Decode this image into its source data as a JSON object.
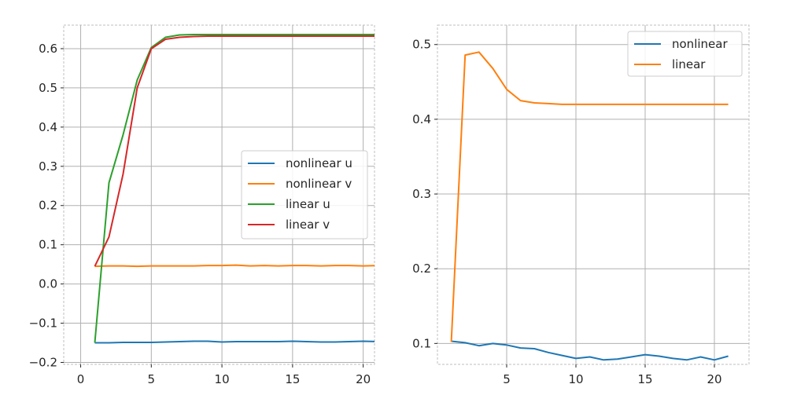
{
  "chart_data": [
    {
      "type": "line",
      "title": "",
      "xlabel": "",
      "ylabel": "",
      "xlim": [
        -1.2,
        20.8
      ],
      "ylim": [
        -0.205,
        0.66
      ],
      "xticks": [
        0,
        5,
        10,
        15,
        20
      ],
      "yticks": [
        -0.2,
        -0.1,
        0.0,
        0.1,
        0.2,
        0.3,
        0.4,
        0.5,
        0.6
      ],
      "ytick_labels": [
        "−0.2",
        "−0.1",
        "0.0",
        "0.1",
        "0.2",
        "0.3",
        "0.4",
        "0.5",
        "0.6"
      ],
      "grid": true,
      "legend": "center-right",
      "x": [
        1,
        2,
        3,
        4,
        5,
        6,
        7,
        8,
        9,
        10,
        11,
        12,
        13,
        14,
        15,
        16,
        17,
        18,
        19,
        20,
        21
      ],
      "series": [
        {
          "name": "nonlinear u",
          "color": "#1f77b4",
          "values": [
            -0.15,
            -0.15,
            -0.149,
            -0.149,
            -0.149,
            -0.148,
            -0.147,
            -0.146,
            -0.146,
            -0.148,
            -0.147,
            -0.147,
            -0.147,
            -0.147,
            -0.146,
            -0.147,
            -0.148,
            -0.148,
            -0.147,
            -0.146,
            -0.147
          ]
        },
        {
          "name": "nonlinear v",
          "color": "#ff7f0e",
          "values": [
            0.045,
            0.046,
            0.046,
            0.045,
            0.046,
            0.046,
            0.046,
            0.046,
            0.047,
            0.047,
            0.048,
            0.046,
            0.047,
            0.046,
            0.047,
            0.047,
            0.046,
            0.047,
            0.047,
            0.046,
            0.047
          ]
        },
        {
          "name": "linear u",
          "color": "#2ca02c",
          "values": [
            -0.15,
            0.258,
            0.38,
            0.52,
            0.603,
            0.629,
            0.635,
            0.636,
            0.636,
            0.636,
            0.636,
            0.636,
            0.636,
            0.636,
            0.636,
            0.636,
            0.636,
            0.636,
            0.636,
            0.636,
            0.636
          ]
        },
        {
          "name": "linear v",
          "color": "#d62728",
          "values": [
            0.045,
            0.12,
            0.28,
            0.5,
            0.6,
            0.624,
            0.629,
            0.631,
            0.632,
            0.632,
            0.632,
            0.632,
            0.632,
            0.632,
            0.632,
            0.632,
            0.632,
            0.632,
            0.632,
            0.632,
            0.632
          ]
        }
      ]
    },
    {
      "type": "line",
      "title": "",
      "xlabel": "",
      "ylabel": "",
      "xlim": [
        0,
        22.5
      ],
      "ylim": [
        0.072,
        0.526
      ],
      "xticks": [
        5,
        10,
        15,
        20
      ],
      "yticks": [
        0.1,
        0.2,
        0.3,
        0.4,
        0.5
      ],
      "ytick_labels": [
        "0.1",
        "0.2",
        "0.3",
        "0.4",
        "0.5"
      ],
      "grid": true,
      "legend": "top-right",
      "x": [
        1,
        2,
        3,
        4,
        5,
        6,
        7,
        8,
        9,
        10,
        11,
        12,
        13,
        14,
        15,
        16,
        17,
        18,
        19,
        20,
        21
      ],
      "series": [
        {
          "name": "nonlinear",
          "color": "#1f77b4",
          "values": [
            0.103,
            0.101,
            0.097,
            0.1,
            0.098,
            0.094,
            0.093,
            0.088,
            0.084,
            0.08,
            0.082,
            0.078,
            0.079,
            0.082,
            0.085,
            0.083,
            0.08,
            0.078,
            0.082,
            0.078,
            0.083
          ]
        },
        {
          "name": "linear",
          "color": "#ff7f0e",
          "values": [
            0.102,
            0.486,
            0.49,
            0.468,
            0.44,
            0.425,
            0.422,
            0.421,
            0.42,
            0.42,
            0.42,
            0.42,
            0.42,
            0.42,
            0.42,
            0.42,
            0.42,
            0.42,
            0.42,
            0.42,
            0.42
          ]
        }
      ]
    }
  ]
}
